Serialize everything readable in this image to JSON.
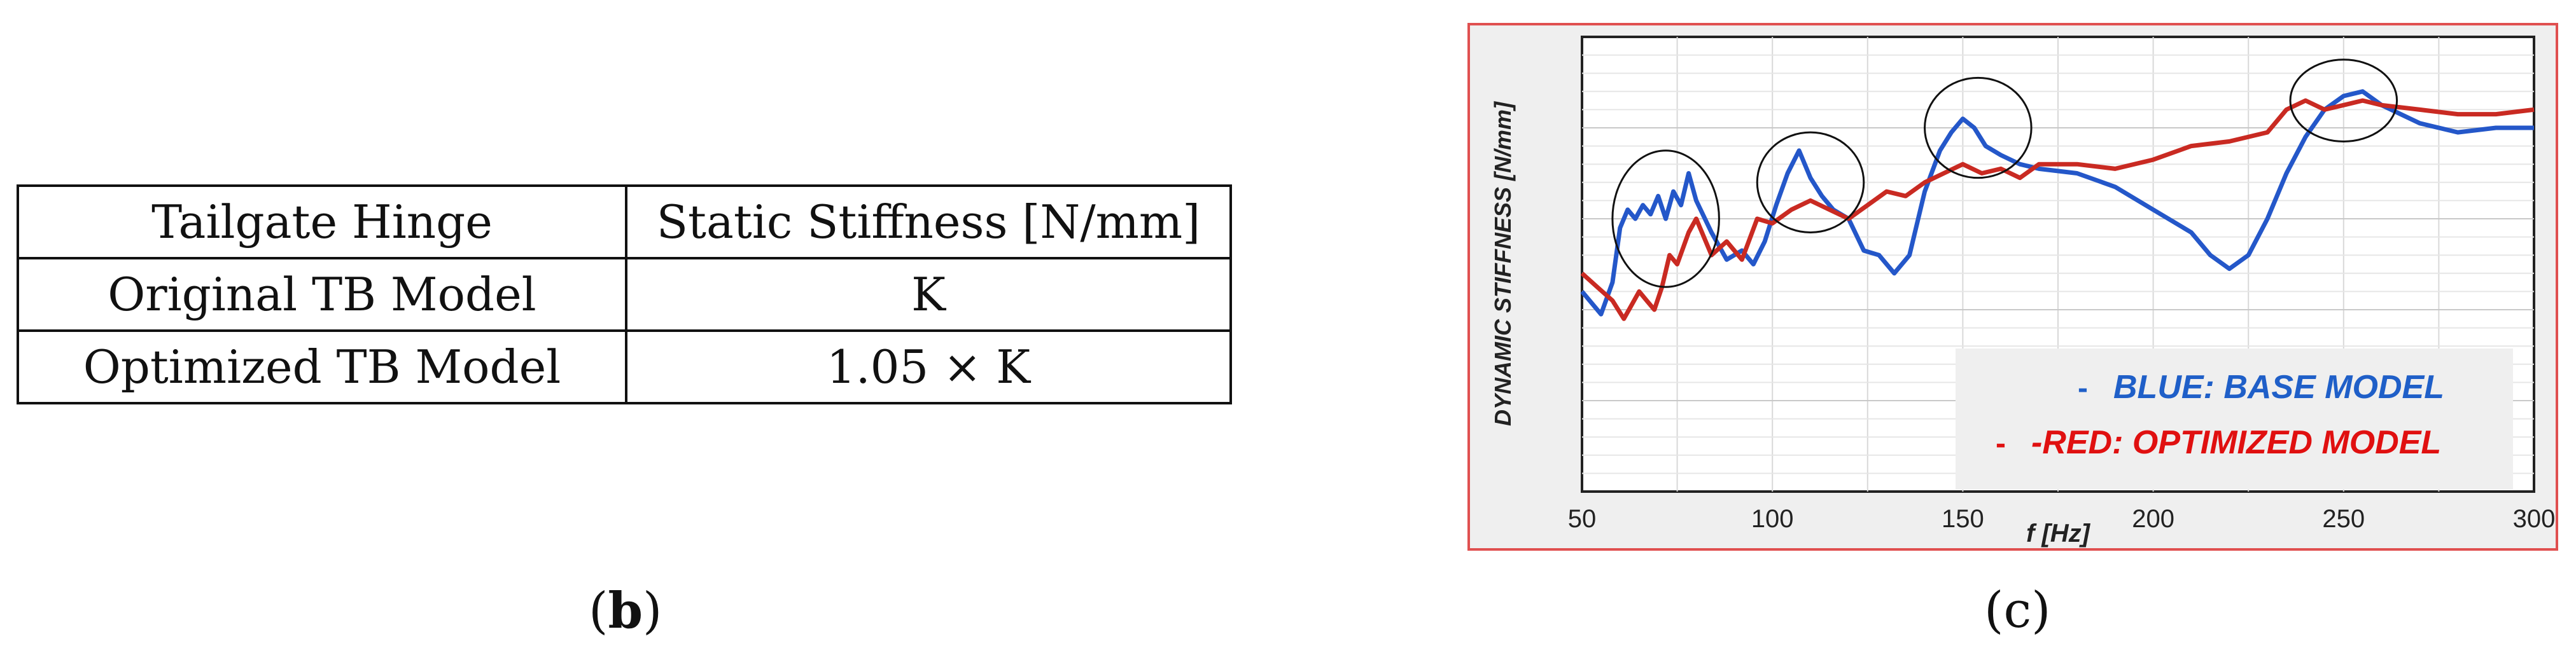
{
  "table": {
    "headers": [
      "Tailgate Hinge",
      "Static Stiffness [N/mm]"
    ],
    "rows": [
      [
        "Original TB Model",
        "K"
      ],
      [
        "Optimized TB Model",
        "1.05 × K"
      ]
    ]
  },
  "captions": {
    "b": "b",
    "c": "c"
  },
  "chart_data": {
    "type": "line",
    "xlabel": "f [Hz]",
    "ylabel": "DYNAMIC STIFFNESS [N/mm]",
    "xlim": [
      50,
      300
    ],
    "ylim": [
      0,
      100
    ],
    "x_ticks": [
      "50",
      "100",
      "150",
      "200",
      "250",
      "300"
    ],
    "grid": true,
    "legend_position": "bottom-right",
    "legend": [
      {
        "dash": "-",
        "label": "BLUE: BASE MODEL",
        "color": "#1f5fc8"
      },
      {
        "dash": "-",
        "label": "-RED: OPTIMIZED MODEL",
        "color": "#e01010"
      }
    ],
    "series": [
      {
        "color": "#2457c9",
        "x": [
          50,
          55,
          58,
          60,
          62,
          64,
          66,
          68,
          70,
          72,
          74,
          76,
          78,
          80,
          84,
          88,
          92,
          95,
          98,
          101,
          104,
          107,
          110,
          113,
          116,
          120,
          124,
          128,
          132,
          136,
          140,
          144,
          147,
          150,
          153,
          156,
          160,
          165,
          170,
          180,
          190,
          200,
          210,
          215,
          220,
          225,
          230,
          235,
          240,
          245,
          250,
          255,
          260,
          270,
          280,
          290,
          300
        ],
        "y": [
          44,
          39,
          46,
          58,
          62,
          60,
          63,
          61,
          65,
          60,
          66,
          63,
          70,
          64,
          57,
          51,
          53,
          50,
          55,
          63,
          70,
          75,
          69,
          65,
          62,
          60,
          53,
          52,
          48,
          52,
          66,
          75,
          79,
          82,
          80,
          76,
          74,
          72,
          71,
          70,
          67,
          62,
          57,
          52,
          49,
          52,
          60,
          70,
          78,
          84,
          87,
          88,
          85,
          81,
          79,
          80,
          80
        ]
      },
      {
        "color": "#c92a22",
        "x": [
          50,
          54,
          58,
          61,
          63,
          65,
          67,
          69,
          71,
          73,
          75,
          78,
          80,
          84,
          88,
          92,
          96,
          100,
          105,
          110,
          115,
          120,
          125,
          130,
          135,
          140,
          145,
          150,
          155,
          160,
          165,
          170,
          180,
          190,
          200,
          210,
          220,
          230,
          235,
          240,
          245,
          250,
          255,
          260,
          270,
          280,
          290,
          300
        ],
        "y": [
          48,
          45,
          42,
          38,
          41,
          44,
          42,
          40,
          45,
          52,
          50,
          57,
          60,
          52,
          55,
          51,
          60,
          59,
          62,
          64,
          62,
          60,
          63,
          66,
          65,
          68,
          70,
          72,
          70,
          71,
          69,
          72,
          72,
          71,
          73,
          76,
          77,
          79,
          84,
          86,
          84,
          85,
          86,
          85,
          84,
          83,
          83,
          84
        ]
      }
    ]
  }
}
